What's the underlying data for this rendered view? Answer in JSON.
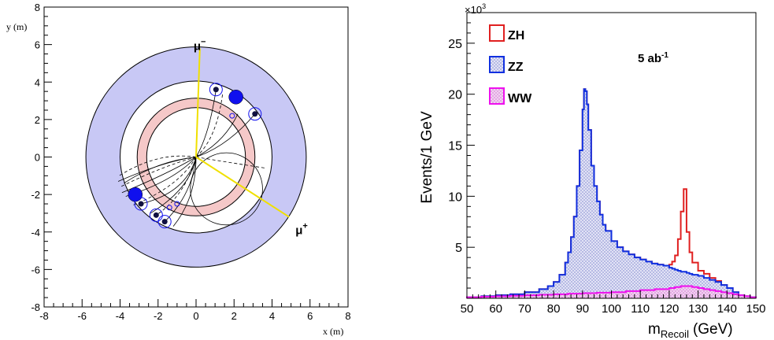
{
  "chart_data": [
    {
      "type": "scatter",
      "title": "",
      "xlabel": "x (m)",
      "ylabel": "y (m)",
      "xlim": [
        -8,
        8
      ],
      "ylim": [
        -8,
        8
      ],
      "x_ticks": [
        "-8",
        "-6",
        "-4",
        "-2",
        "0",
        "2",
        "4",
        "6",
        "8"
      ],
      "y_ticks": [
        "-8",
        "-6",
        "-4",
        "-2",
        "0",
        "2",
        "4",
        "6",
        "8"
      ],
      "rings": [
        {
          "name": "outer-calorimeter",
          "r_outer": 5.8,
          "r_inner": 4.0,
          "fill": "#c8c8f5"
        },
        {
          "name": "inner-ring",
          "r_outer": 3.1,
          "r_inner": 2.6,
          "fill": "#f5c8c8"
        }
      ],
      "muons": [
        {
          "label": "μ",
          "sign": "−",
          "end_x": 0.2,
          "end_y": 5.8
        },
        {
          "label": "μ",
          "sign": "+",
          "end_x": 4.9,
          "end_y": -3.2
        }
      ],
      "clusters_large": [
        {
          "x": 2.1,
          "y": 3.2
        },
        {
          "x": -3.2,
          "y": -2.0
        }
      ],
      "clusters_circled": [
        {
          "x": 1.05,
          "y": 3.6
        },
        {
          "x": 3.1,
          "y": 2.3
        },
        {
          "x": -2.9,
          "y": -2.5
        },
        {
          "x": -2.1,
          "y": -3.1
        },
        {
          "x": -1.65,
          "y": -3.45
        }
      ],
      "colors": {
        "accent": "#1010ee",
        "muon": "#f0e000",
        "frame": "#000000"
      }
    },
    {
      "type": "area",
      "title": "",
      "xlabel": "m",
      "xlabel_sub": "Recoil",
      "xlabel_unit": "(GeV)",
      "ylabel": "Events/1 GeV",
      "y_multiplier": "×10",
      "y_multiplier_exp": "3",
      "annotation": "5 ab",
      "annotation_exp": "-1",
      "xlim": [
        50,
        150
      ],
      "ylim": [
        0,
        28
      ],
      "x_ticks": [
        "50",
        "60",
        "70",
        "80",
        "90",
        "100",
        "110",
        "120",
        "130",
        "140",
        "150"
      ],
      "y_ticks": [
        "5",
        "10",
        "15",
        "20",
        "25"
      ],
      "legend_position": "top-left",
      "series": [
        {
          "name": "ZH",
          "color": "#e02020",
          "stacked": true,
          "x": [
            50,
            55,
            60,
            65,
            70,
            75,
            78,
            80,
            82,
            84,
            85,
            86,
            87,
            88,
            89,
            90,
            90.5,
            91,
            91.5,
            92,
            93,
            94,
            95,
            96,
            97,
            98,
            100,
            102,
            104,
            106,
            108,
            110,
            112,
            114,
            116,
            118,
            120,
            121,
            122,
            123,
            124,
            125,
            126,
            127,
            128,
            130,
            132,
            134,
            136,
            138,
            140,
            142,
            144,
            146,
            148,
            150
          ],
          "values": [
            0.1,
            0.2,
            0.3,
            0.4,
            0.6,
            0.9,
            1.2,
            1.6,
            2.3,
            3.5,
            4.5,
            6.0,
            8.0,
            11.0,
            14.5,
            18.5,
            20.5,
            20.3,
            19.0,
            16.5,
            13.0,
            11.0,
            9.5,
            8.2,
            7.2,
            6.6,
            5.6,
            5.0,
            4.6,
            4.3,
            4.0,
            3.8,
            3.6,
            3.4,
            3.3,
            3.2,
            3.3,
            3.6,
            4.2,
            5.8,
            8.5,
            10.7,
            6.5,
            4.5,
            3.5,
            2.7,
            2.4,
            2.0,
            1.7,
            1.3,
            1.0,
            0.6,
            0.3,
            0.2,
            0.1,
            0.0
          ]
        },
        {
          "name": "ZZ",
          "color": "#1030e0",
          "stacked": true,
          "x": [
            50,
            55,
            60,
            65,
            70,
            75,
            78,
            80,
            82,
            84,
            85,
            86,
            87,
            88,
            89,
            90,
            90.5,
            91,
            91.5,
            92,
            93,
            94,
            95,
            96,
            97,
            98,
            100,
            102,
            104,
            106,
            108,
            110,
            112,
            114,
            116,
            118,
            120,
            121,
            122,
            123,
            124,
            125,
            126,
            127,
            128,
            130,
            132,
            134,
            136,
            138,
            140,
            142,
            144,
            146,
            148,
            150
          ],
          "values": [
            0.1,
            0.2,
            0.3,
            0.4,
            0.6,
            0.9,
            1.2,
            1.6,
            2.3,
            3.5,
            4.5,
            6.0,
            8.0,
            11.0,
            14.5,
            18.5,
            20.5,
            20.3,
            19.0,
            16.5,
            13.0,
            11.0,
            9.5,
            8.2,
            7.2,
            6.6,
            5.6,
            5.0,
            4.6,
            4.3,
            4.0,
            3.8,
            3.6,
            3.4,
            3.3,
            3.2,
            3.0,
            2.9,
            2.8,
            2.7,
            2.6,
            2.6,
            2.5,
            2.4,
            2.3,
            2.2,
            2.0,
            1.8,
            1.6,
            1.3,
            1.0,
            0.6,
            0.3,
            0.2,
            0.1,
            0.0
          ]
        },
        {
          "name": "WW",
          "color": "#ee10ee",
          "stacked": true,
          "x": [
            50,
            55,
            60,
            65,
            70,
            75,
            80,
            85,
            90,
            95,
            100,
            105,
            110,
            115,
            120,
            122,
            124,
            126,
            128,
            130,
            132,
            134,
            136,
            138,
            140,
            142,
            144,
            146,
            148,
            150
          ],
          "values": [
            0.1,
            0.15,
            0.2,
            0.25,
            0.3,
            0.35,
            0.4,
            0.45,
            0.5,
            0.55,
            0.6,
            0.7,
            0.8,
            0.9,
            1.0,
            1.1,
            1.2,
            1.2,
            1.1,
            1.0,
            0.9,
            0.8,
            0.7,
            0.6,
            0.5,
            0.4,
            0.3,
            0.2,
            0.1,
            0.0
          ]
        }
      ]
    }
  ]
}
